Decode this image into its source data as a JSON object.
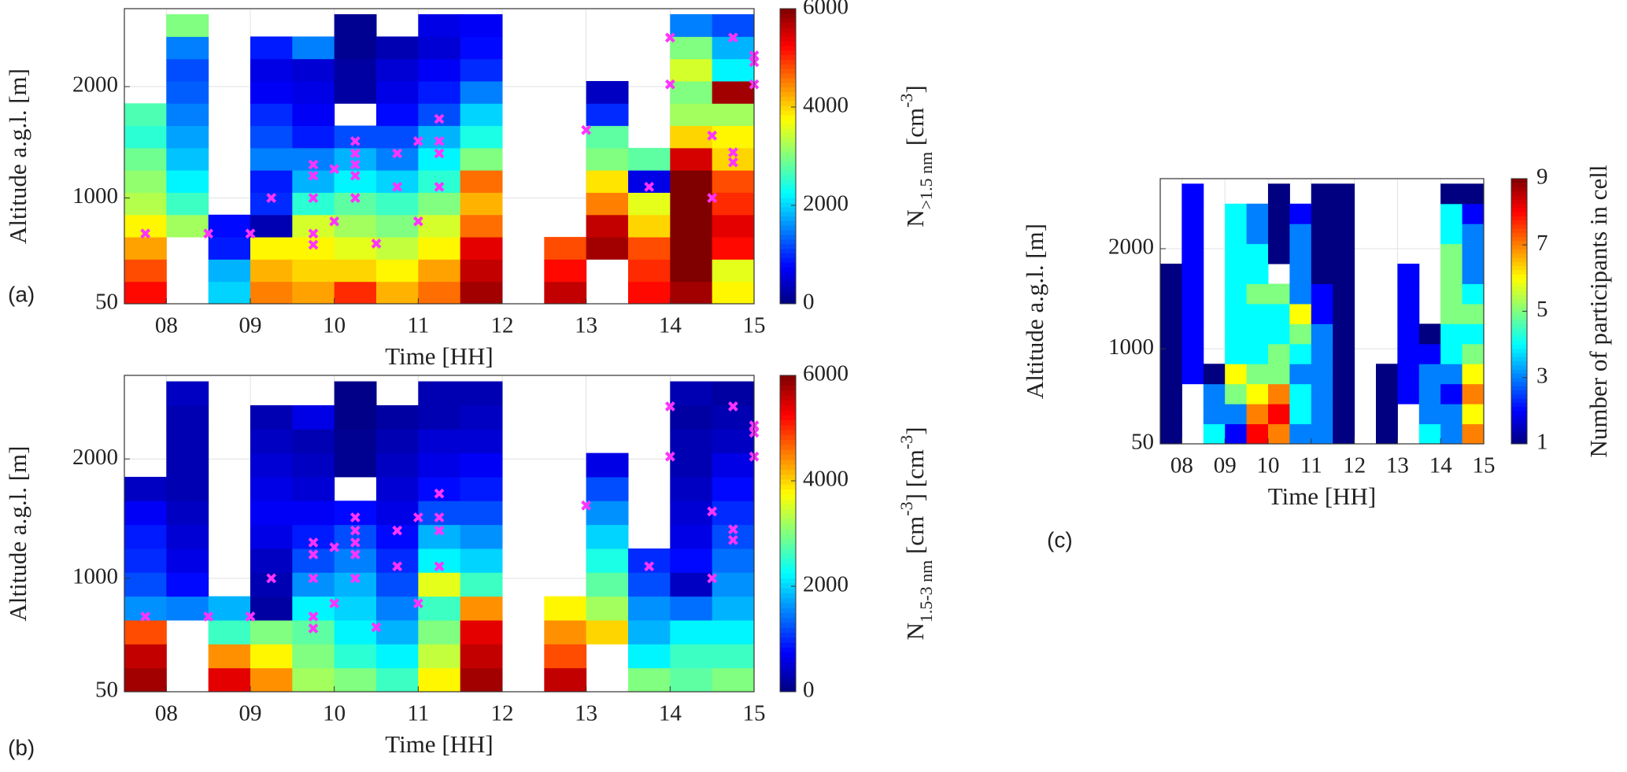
{
  "chart_data": [
    {
      "type": "heatmap",
      "panel_label": "(a)",
      "xlabel": "Time [HH]",
      "ylabel": "Altitude a.g.l. [m]",
      "colorbar_label": [
        {
          "text": "N",
          "pos": "base"
        },
        {
          "text": ">1.5 nm",
          "pos": "sub"
        },
        {
          "text": " [cm",
          "pos": "base"
        },
        {
          "text": "-3",
          "pos": "sup"
        },
        {
          "text": "]",
          "pos": "base"
        }
      ],
      "colormap": "jet",
      "grid": true,
      "x_bins": [
        7.5,
        8,
        8.5,
        9,
        9.5,
        10,
        10.5,
        11,
        11.5,
        12,
        12.5,
        13,
        13.5,
        14,
        14.5,
        15
      ],
      "y_bins": [
        50,
        250,
        450,
        650,
        850,
        1050,
        1250,
        1450,
        1650,
        1850,
        2050,
        2250,
        2450,
        2650
      ],
      "xlim": [
        7.5,
        15
      ],
      "ylim": [
        50,
        2700
      ],
      "xticks": [
        {
          "value": 8,
          "label": "08"
        },
        {
          "value": 9,
          "label": "09"
        },
        10,
        11,
        12,
        13,
        14,
        15
      ],
      "yticks": [
        50,
        1000,
        2000
      ],
      "clim": [
        0,
        6000
      ],
      "cticks": [
        0,
        2000,
        4000,
        6000
      ],
      "values": [
        [
          5200,
          4800,
          4300,
          3800,
          3300,
          3100,
          2900,
          2500,
          2700,
          null,
          null,
          null,
          null
        ],
        [
          null,
          null,
          null,
          3200,
          2600,
          2200,
          1900,
          1700,
          1500,
          1300,
          1200,
          1500,
          3000
        ],
        [
          2000,
          1800,
          900,
          800,
          null,
          null,
          null,
          null,
          null,
          null,
          null,
          null,
          null
        ],
        [
          4500,
          4200,
          3800,
          300,
          1000,
          900,
          1500,
          1200,
          1000,
          700,
          600,
          900,
          null
        ],
        [
          4300,
          4000,
          3800,
          3500,
          2500,
          1800,
          1500,
          900,
          700,
          600,
          500,
          1500,
          null
        ],
        [
          5000,
          4000,
          3600,
          3200,
          2800,
          2200,
          1800,
          1200,
          null,
          200,
          200,
          100,
          100
        ],
        [
          4200,
          3800,
          3400,
          3000,
          2600,
          2000,
          1500,
          1200,
          800,
          600,
          500,
          300,
          null
        ],
        [
          4600,
          4300,
          3800,
          3500,
          3000,
          2500,
          2200,
          1800,
          1200,
          900,
          700,
          500,
          600
        ],
        [
          5800,
          5600,
          5400,
          4600,
          4200,
          4600,
          3000,
          2400,
          2000,
          1500,
          1000,
          800,
          700
        ],
        [
          null,
          null,
          null,
          null,
          null,
          null,
          null,
          null,
          null,
          null,
          null,
          null,
          null
        ],
        [
          5600,
          5200,
          4800,
          null,
          null,
          null,
          null,
          null,
          null,
          null,
          null,
          null,
          null
        ],
        [
          null,
          null,
          5800,
          5600,
          4500,
          3900,
          3000,
          2800,
          1000,
          400,
          null,
          null,
          null
        ],
        [
          5200,
          5000,
          4800,
          4000,
          3600,
          600,
          2800,
          null,
          null,
          null,
          null,
          null,
          null
        ],
        [
          5800,
          6000,
          6000,
          6000,
          6000,
          6000,
          5500,
          4000,
          3200,
          3000,
          3500,
          3000,
          1500
        ],
        [
          3800,
          3600,
          5200,
          5400,
          5000,
          4800,
          4000,
          3800,
          3200,
          5800,
          2200,
          1800,
          1200
        ]
      ],
      "markers": {
        "color": "#ff33ff",
        "x": [
          7.75,
          8.5,
          9.0,
          9.25,
          9.75,
          9.75,
          9.75,
          9.75,
          9.75,
          10.0,
          10.0,
          10.25,
          10.25,
          10.25,
          10.25,
          10.25,
          10.5,
          10.75,
          10.75,
          11.0,
          11.0,
          11.25,
          11.25,
          11.25,
          11.25,
          13.0,
          13.75,
          14.0,
          14.0,
          14.5,
          14.5,
          14.75,
          14.75,
          14.75,
          15.0,
          15.0,
          15.0
        ],
        "y": [
          680,
          680,
          680,
          1000,
          1300,
          1200,
          1000,
          680,
          580,
          790,
          1260,
          1510,
          1400,
          1300,
          1200,
          1000,
          590,
          1400,
          1100,
          1510,
          790,
          1710,
          1510,
          1400,
          1100,
          1610,
          1100,
          2440,
          2020,
          1560,
          1000,
          2440,
          1410,
          1320,
          2280,
          2220,
          2020
        ]
      }
    },
    {
      "type": "heatmap",
      "panel_label": "(b)",
      "xlabel": "Time [HH]",
      "ylabel": "Altitude a.g.l. [m]",
      "colorbar_label": [
        {
          "text": "N",
          "pos": "base"
        },
        {
          "text": "1.5-3 nm",
          "pos": "sub"
        },
        {
          "text": " [cm",
          "pos": "base"
        },
        {
          "text": "-3",
          "pos": "sup"
        },
        {
          "text": "] [cm",
          "pos": "base"
        },
        {
          "text": "-3",
          "pos": "sup"
        },
        {
          "text": "]",
          "pos": "base"
        }
      ],
      "colormap": "jet",
      "grid": true,
      "x_bins": [
        7.5,
        8,
        8.5,
        9,
        9.5,
        10,
        10.5,
        11,
        11.5,
        12,
        12.5,
        13,
        13.5,
        14,
        14.5,
        15
      ],
      "y_bins": [
        50,
        250,
        450,
        650,
        850,
        1050,
        1250,
        1450,
        1650,
        1850,
        2050,
        2250,
        2450,
        2650
      ],
      "xlim": [
        7.5,
        15
      ],
      "ylim": [
        50,
        2700
      ],
      "xticks": [
        {
          "value": 8,
          "label": "08"
        },
        {
          "value": 9,
          "label": "09"
        },
        10,
        11,
        12,
        13,
        14,
        15
      ],
      "yticks": [
        50,
        1000,
        2000
      ],
      "clim": [
        0,
        6000
      ],
      "cticks": [
        0,
        2000,
        4000,
        6000
      ],
      "values": [
        [
          5800,
          5600,
          4800,
          1600,
          1200,
          1000,
          900,
          700,
          400,
          null,
          null,
          null,
          null
        ],
        [
          null,
          null,
          null,
          1500,
          800,
          600,
          500,
          400,
          300,
          300,
          300,
          300,
          400
        ],
        [
          5400,
          4400,
          2600,
          1800,
          null,
          null,
          null,
          null,
          null,
          null,
          null,
          null,
          null
        ],
        [
          4400,
          3800,
          3000,
          200,
          300,
          400,
          600,
          700,
          600,
          500,
          400,
          300,
          null
        ],
        [
          3200,
          3000,
          2800,
          2200,
          1600,
          1200,
          900,
          700,
          500,
          400,
          300,
          600,
          null
        ],
        [
          3000,
          2500,
          2200,
          2000,
          1800,
          1500,
          1200,
          800,
          null,
          100,
          100,
          50,
          50
        ],
        [
          2600,
          2200,
          1800,
          1500,
          1200,
          1000,
          800,
          600,
          500,
          400,
          300,
          200,
          null
        ],
        [
          3800,
          3400,
          3000,
          2600,
          3600,
          2200,
          1800,
          1200,
          800,
          600,
          500,
          300,
          300
        ],
        [
          5800,
          5600,
          5400,
          4400,
          2600,
          2000,
          1600,
          1200,
          900,
          700,
          500,
          400,
          300
        ],
        [
          null,
          null,
          null,
          null,
          null,
          null,
          null,
          null,
          null,
          null,
          null,
          null,
          null
        ],
        [
          5600,
          4800,
          4400,
          3800,
          null,
          null,
          null,
          null,
          null,
          null,
          null,
          null,
          null
        ],
        [
          null,
          null,
          4000,
          3200,
          2800,
          2400,
          2000,
          1600,
          1200,
          600,
          null,
          null,
          null
        ],
        [
          3000,
          2200,
          1800,
          1600,
          1200,
          1000,
          null,
          null,
          null,
          null,
          null,
          null,
          null
        ],
        [
          2800,
          2600,
          2200,
          1400,
          400,
          800,
          600,
          500,
          400,
          300,
          300,
          200,
          300
        ],
        [
          3000,
          2600,
          2200,
          1800,
          1600,
          1400,
          1200,
          1000,
          800,
          600,
          400,
          300,
          200
        ]
      ],
      "markers": {
        "color": "#ff33ff",
        "x": [
          7.75,
          8.5,
          9.0,
          9.25,
          9.75,
          9.75,
          9.75,
          9.75,
          9.75,
          10.0,
          10.0,
          10.25,
          10.25,
          10.25,
          10.25,
          10.25,
          10.5,
          10.75,
          10.75,
          11.0,
          11.0,
          11.25,
          11.25,
          11.25,
          11.25,
          13.0,
          13.75,
          14.0,
          14.0,
          14.5,
          14.5,
          14.75,
          14.75,
          14.75,
          15.0,
          15.0,
          15.0
        ],
        "y": [
          680,
          680,
          680,
          1000,
          1300,
          1200,
          1000,
          680,
          580,
          790,
          1260,
          1510,
          1400,
          1300,
          1200,
          1000,
          590,
          1400,
          1100,
          1510,
          790,
          1710,
          1510,
          1400,
          1100,
          1610,
          1100,
          2440,
          2020,
          1560,
          1000,
          2440,
          1410,
          1320,
          2280,
          2220,
          2020
        ]
      }
    },
    {
      "type": "heatmap",
      "panel_label": "(c)",
      "xlabel": "Time [HH]",
      "ylabel": "Altitude a.g.l. [m]",
      "colorbar_label": [
        {
          "text": "Number of participants in cell",
          "pos": "base"
        }
      ],
      "colormap": "jet",
      "grid": true,
      "x_bins": [
        7.5,
        8,
        8.5,
        9,
        9.5,
        10,
        10.5,
        11,
        11.5,
        12,
        12.5,
        13,
        13.5,
        14,
        14.5,
        15
      ],
      "y_bins": [
        50,
        250,
        450,
        650,
        850,
        1050,
        1250,
        1450,
        1650,
        1850,
        2050,
        2250,
        2450,
        2650
      ],
      "xlim": [
        7.5,
        15
      ],
      "ylim": [
        50,
        2700
      ],
      "xticks": [
        {
          "value": 8,
          "label": "08"
        },
        {
          "value": 9,
          "label": "09"
        },
        10,
        11,
        12,
        13,
        14,
        15
      ],
      "yticks": [
        50,
        1000,
        2000
      ],
      "clim": [
        1,
        9
      ],
      "cticks": [
        1,
        3,
        5,
        7,
        9
      ],
      "values": [
        [
          1,
          1,
          1,
          1,
          1,
          1,
          1,
          1,
          1,
          null,
          null,
          null,
          null
        ],
        [
          null,
          null,
          null,
          2,
          2,
          2,
          2,
          2,
          2,
          2,
          2,
          2,
          2
        ],
        [
          4,
          3,
          3,
          1,
          null,
          null,
          null,
          null,
          null,
          null,
          null,
          null,
          null
        ],
        [
          2,
          3,
          5,
          6,
          4,
          4,
          4,
          4,
          4,
          4,
          4,
          4,
          null
        ],
        [
          8,
          7,
          6,
          5,
          4,
          4,
          4,
          5,
          4,
          4,
          3,
          3,
          null
        ],
        [
          7,
          8,
          7,
          5,
          5,
          4,
          4,
          5,
          null,
          1,
          1,
          1,
          1
        ],
        [
          3,
          4,
          4,
          3,
          4,
          5,
          6,
          3,
          3,
          3,
          3,
          2,
          null
        ],
        [
          3,
          3,
          3,
          3,
          3,
          3,
          2,
          2,
          1,
          1,
          1,
          1,
          1
        ],
        [
          1,
          1,
          1,
          1,
          1,
          1,
          1,
          1,
          1,
          1,
          1,
          1,
          1
        ],
        [
          null,
          null,
          null,
          null,
          null,
          null,
          null,
          null,
          null,
          null,
          null,
          null,
          null
        ],
        [
          1,
          1,
          1,
          1,
          null,
          null,
          null,
          null,
          null,
          null,
          null,
          null,
          null
        ],
        [
          null,
          null,
          2,
          2,
          2,
          2,
          2,
          2,
          2,
          null,
          null,
          null,
          null
        ],
        [
          4,
          3,
          3,
          3,
          2,
          1,
          null,
          null,
          null,
          null,
          null,
          null,
          null
        ],
        [
          3,
          3,
          2,
          3,
          4,
          4,
          5,
          5,
          5,
          5,
          4,
          4,
          1
        ],
        [
          7,
          6,
          7,
          6,
          5,
          4,
          5,
          4,
          3,
          3,
          3,
          2,
          1
        ]
      ]
    }
  ]
}
